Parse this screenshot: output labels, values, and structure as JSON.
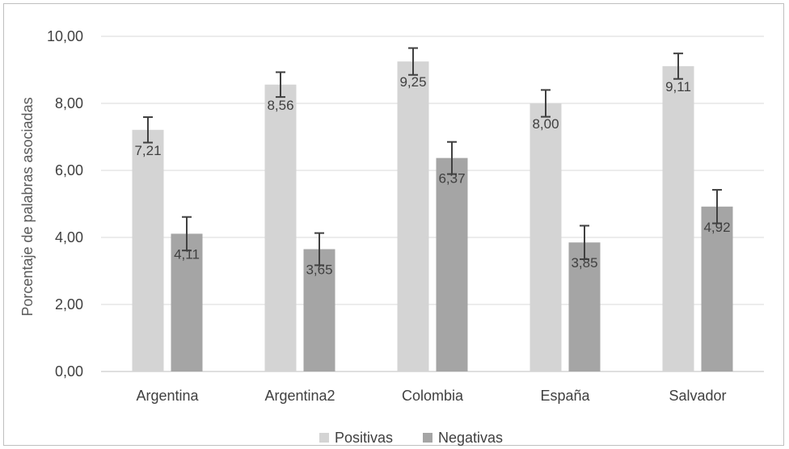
{
  "chart_data": {
    "type": "bar",
    "title": "",
    "xlabel": "",
    "ylabel": "Porcentaje de palabras asociadas",
    "ylim": [
      0,
      10
    ],
    "yticks": [
      "0,00",
      "2,00",
      "4,00",
      "6,00",
      "8,00",
      "10,00"
    ],
    "ytick_values": [
      0,
      2,
      4,
      6,
      8,
      10
    ],
    "categories": [
      "Argentina",
      "Argentina2",
      "Colombia",
      "España",
      "Salvador"
    ],
    "grid": true,
    "legend_position": "bottom",
    "series": [
      {
        "name": "Positivas",
        "color": "#d4d4d4",
        "values": [
          7.21,
          8.56,
          9.25,
          8.0,
          9.11
        ],
        "labels": [
          "7,21",
          "8,56",
          "9,25",
          "8,00",
          "9,11"
        ],
        "error": [
          0.38,
          0.37,
          0.4,
          0.4,
          0.38
        ]
      },
      {
        "name": "Negativas",
        "color": "#a5a5a5",
        "values": [
          4.11,
          3.65,
          6.37,
          3.85,
          4.92
        ],
        "labels": [
          "4,11",
          "3,65",
          "6,37",
          "3,85",
          "4,92"
        ],
        "error": [
          0.5,
          0.48,
          0.48,
          0.5,
          0.5
        ]
      }
    ]
  }
}
